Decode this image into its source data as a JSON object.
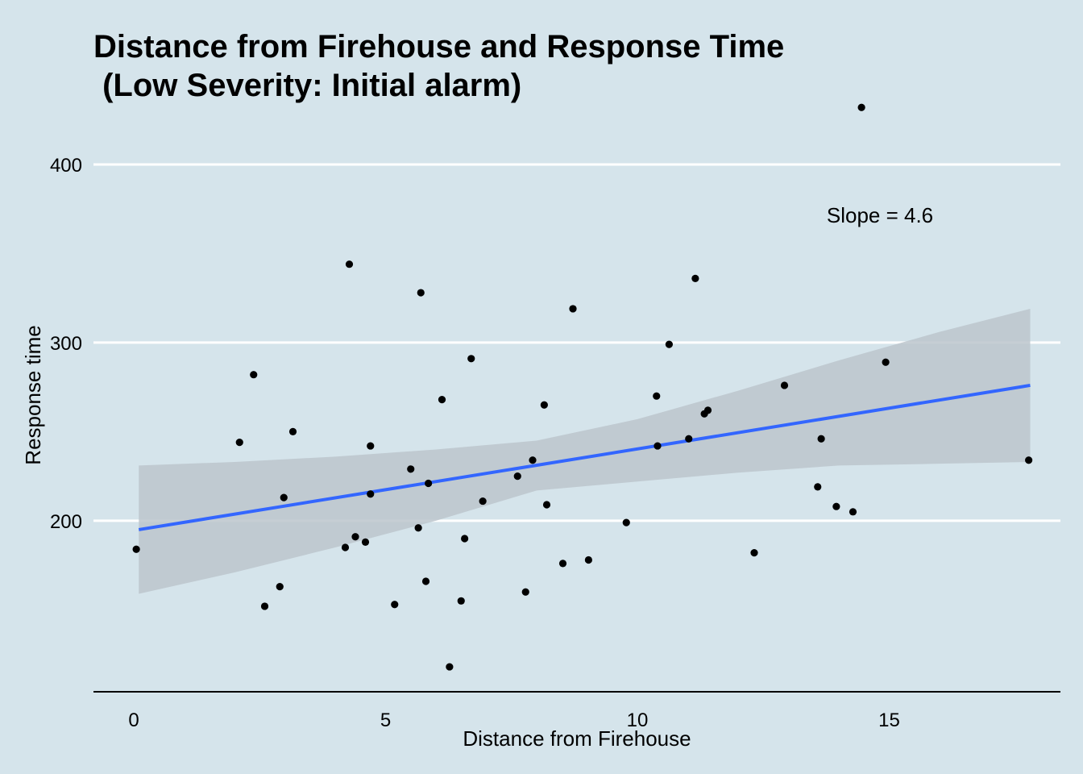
{
  "chart_data": {
    "type": "scatter",
    "title_line1": "Distance from Firehouse and Response Time",
    "title_line2": " (Low Severity: Initial alarm)",
    "xlabel": "Distance from Firehouse",
    "ylabel": "Response time",
    "xlim": [
      -0.8,
      18.4
    ],
    "ylim": [
      104,
      438
    ],
    "x_ticks": [
      0,
      5,
      10,
      15
    ],
    "y_ticks": [
      200,
      300,
      400
    ],
    "grid": "horizontal major lines (white)",
    "annotation": "Slope = 4.6",
    "fit": {
      "type": "linear",
      "start": [
        0.1,
        195
      ],
      "end": [
        17.8,
        276
      ]
    },
    "confidence_band": {
      "x": [
        0.1,
        2,
        4,
        6,
        8,
        10,
        12,
        14,
        16,
        17.8
      ],
      "upper": [
        231,
        233,
        236,
        240,
        245,
        257,
        273,
        290,
        306,
        319
      ],
      "lower": [
        159,
        171,
        185,
        200,
        217,
        222,
        227,
        231,
        232,
        233
      ]
    },
    "points": [
      {
        "x": 0.05,
        "y": 184
      },
      {
        "x": 2.1,
        "y": 244
      },
      {
        "x": 2.38,
        "y": 282
      },
      {
        "x": 2.6,
        "y": 152
      },
      {
        "x": 2.9,
        "y": 163
      },
      {
        "x": 2.98,
        "y": 213
      },
      {
        "x": 3.16,
        "y": 250
      },
      {
        "x": 4.2,
        "y": 185
      },
      {
        "x": 4.28,
        "y": 344
      },
      {
        "x": 4.4,
        "y": 191
      },
      {
        "x": 4.6,
        "y": 188
      },
      {
        "x": 4.7,
        "y": 242
      },
      {
        "x": 4.7,
        "y": 215
      },
      {
        "x": 5.18,
        "y": 153
      },
      {
        "x": 5.5,
        "y": 229
      },
      {
        "x": 5.65,
        "y": 196
      },
      {
        "x": 5.7,
        "y": 328
      },
      {
        "x": 5.8,
        "y": 166
      },
      {
        "x": 5.85,
        "y": 221
      },
      {
        "x": 6.12,
        "y": 268
      },
      {
        "x": 6.27,
        "y": 118
      },
      {
        "x": 6.5,
        "y": 155
      },
      {
        "x": 6.57,
        "y": 190
      },
      {
        "x": 6.7,
        "y": 291
      },
      {
        "x": 6.93,
        "y": 211
      },
      {
        "x": 7.62,
        "y": 225
      },
      {
        "x": 7.78,
        "y": 160
      },
      {
        "x": 7.92,
        "y": 234
      },
      {
        "x": 8.15,
        "y": 265
      },
      {
        "x": 8.2,
        "y": 209
      },
      {
        "x": 8.52,
        "y": 176
      },
      {
        "x": 8.72,
        "y": 319
      },
      {
        "x": 9.03,
        "y": 178
      },
      {
        "x": 9.78,
        "y": 199
      },
      {
        "x": 10.38,
        "y": 270
      },
      {
        "x": 10.4,
        "y": 242
      },
      {
        "x": 10.63,
        "y": 299
      },
      {
        "x": 11.02,
        "y": 246
      },
      {
        "x": 11.15,
        "y": 336
      },
      {
        "x": 11.33,
        "y": 260
      },
      {
        "x": 11.4,
        "y": 262
      },
      {
        "x": 12.32,
        "y": 182
      },
      {
        "x": 12.92,
        "y": 276
      },
      {
        "x": 13.58,
        "y": 219
      },
      {
        "x": 13.65,
        "y": 246
      },
      {
        "x": 13.95,
        "y": 208
      },
      {
        "x": 14.28,
        "y": 205
      },
      {
        "x": 14.45,
        "y": 432
      },
      {
        "x": 14.93,
        "y": 289
      },
      {
        "x": 17.77,
        "y": 234
      }
    ],
    "colors": {
      "background": "#d5e4eb",
      "points": "#000000",
      "fit_line": "#3366ff",
      "band": "#bcc5cc",
      "grid": "#ffffff"
    }
  }
}
